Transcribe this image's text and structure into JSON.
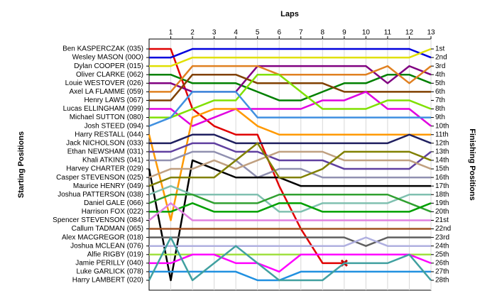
{
  "chart_data": {
    "type": "line",
    "x_label": "Laps",
    "y_label": "Starting Positions",
    "y2_label": "Finishing Positions",
    "x": [
      0,
      1,
      2,
      3,
      4,
      5,
      6,
      7,
      8,
      9,
      10,
      11,
      12,
      13
    ],
    "xlim": [
      0,
      13
    ],
    "xticks": [
      1,
      2,
      3,
      4,
      5,
      6,
      7,
      8,
      9,
      10,
      11,
      12,
      13
    ],
    "ylim": [
      1,
      28
    ],
    "y_inverted": true,
    "grid": true,
    "yticks": [
      {
        "value": 1,
        "label": "Ben KASPERCZAK (035)"
      },
      {
        "value": 2,
        "label": "Wesley MASON (00O)"
      },
      {
        "value": 3,
        "label": "Dylan COOPER (015)"
      },
      {
        "value": 4,
        "label": "Oliver CLARKE (062)"
      },
      {
        "value": 5,
        "label": "Louie WESTOVER (026)"
      },
      {
        "value": 6,
        "label": "Axel LA FLAMME (059)"
      },
      {
        "value": 7,
        "label": "Henry LAWS (067)"
      },
      {
        "value": 8,
        "label": "Lucas ELLINGHAM (099)"
      },
      {
        "value": 9,
        "label": "Michael SUTTON (080)"
      },
      {
        "value": 10,
        "label": "Josh STEED (094)"
      },
      {
        "value": 11,
        "label": "Harry RESTALL (044)"
      },
      {
        "value": 12,
        "label": "Jack NICHOLSON (033)"
      },
      {
        "value": 13,
        "label": "Ethan NEWSHAM (031)"
      },
      {
        "value": 14,
        "label": "Khali ATKINS (041)"
      },
      {
        "value": 15,
        "label": "Harvey CHARTER (029)"
      },
      {
        "value": 16,
        "label": "Casper STEVENSON (025)"
      },
      {
        "value": 17,
        "label": "Maurice HENRY (049)"
      },
      {
        "value": 18,
        "label": "Joshua PATTERSON (038)"
      },
      {
        "value": 19,
        "label": "Daniel GALE (066)"
      },
      {
        "value": 20,
        "label": "Harrison FOX (022)"
      },
      {
        "value": 21,
        "label": "Spencer STEVENSON (084)"
      },
      {
        "value": 22,
        "label": "Callum TADMAN (065)"
      },
      {
        "value": 23,
        "label": "Alex MACGREGOR (018)"
      },
      {
        "value": 24,
        "label": "Joshua MCLEAN (076)"
      },
      {
        "value": 25,
        "label": "Alfie RIGBY (019)"
      },
      {
        "value": 26,
        "label": "Jamie PERILLY (040)"
      },
      {
        "value": 27,
        "label": "Luke GARLICK (078)"
      },
      {
        "value": 28,
        "label": "Harry LAMBERT (020)"
      }
    ],
    "y2ticks": [
      {
        "value": 1,
        "label": "1st"
      },
      {
        "value": 2,
        "label": "2nd"
      },
      {
        "value": 3,
        "label": "3rd"
      },
      {
        "value": 4,
        "label": "4th"
      },
      {
        "value": 5,
        "label": "5th"
      },
      {
        "value": 6,
        "label": "6th"
      },
      {
        "value": 7,
        "label": "7th"
      },
      {
        "value": 8,
        "label": "8th"
      },
      {
        "value": 9,
        "label": "9th"
      },
      {
        "value": 10,
        "label": "10th"
      },
      {
        "value": 11,
        "label": "11th"
      },
      {
        "value": 12,
        "label": "12th"
      },
      {
        "value": 13,
        "label": "13th"
      },
      {
        "value": 14,
        "label": "14th"
      },
      {
        "value": 15,
        "label": "15th"
      },
      {
        "value": 16,
        "label": "16th"
      },
      {
        "value": 17,
        "label": "17th"
      },
      {
        "value": 18,
        "label": "18th"
      },
      {
        "value": 19,
        "label": "19th"
      },
      {
        "value": 20,
        "label": "20th"
      },
      {
        "value": 21,
        "label": "21st"
      },
      {
        "value": 22,
        "label": "22nd"
      },
      {
        "value": 23,
        "label": "23rd"
      },
      {
        "value": 24,
        "label": "24th"
      },
      {
        "value": 25,
        "label": "25th"
      },
      {
        "value": 26,
        "label": "26th"
      },
      {
        "value": 27,
        "label": "27th"
      },
      {
        "value": 28,
        "label": "28th"
      }
    ],
    "series": [
      {
        "color": "#e00000",
        "retired": true,
        "values": [
          1,
          1,
          8,
          10,
          11,
          11,
          17,
          22,
          26,
          26,
          null,
          null,
          null,
          null
        ]
      },
      {
        "color": "#0000dd",
        "values": [
          2,
          2,
          1,
          1,
          1,
          1,
          1,
          1,
          1,
          1,
          1,
          1,
          1,
          2
        ]
      },
      {
        "color": "#e0e000",
        "values": [
          3,
          3,
          2,
          2,
          2,
          2,
          2,
          2,
          2,
          2,
          2,
          2,
          2,
          1
        ]
      },
      {
        "color": "#008000",
        "values": [
          4,
          4,
          5,
          5,
          5,
          6,
          7,
          7,
          6,
          5,
          5,
          4,
          4,
          5
        ]
      },
      {
        "color": "#800080",
        "values": [
          5,
          5,
          6,
          6,
          6,
          3,
          3,
          3,
          3,
          3,
          3,
          5,
          3,
          4
        ]
      },
      {
        "color": "#e08020",
        "values": [
          6,
          6,
          3,
          3,
          3,
          3,
          4,
          4,
          4,
          4,
          4,
          3,
          5,
          3
        ]
      },
      {
        "color": "#804000",
        "values": [
          7,
          7,
          4,
          4,
          4,
          5,
          5,
          5,
          5,
          6,
          6,
          6,
          6,
          6
        ]
      },
      {
        "color": "#e000e0",
        "values": [
          8,
          8,
          10,
          9,
          8,
          8,
          8,
          8,
          7,
          7,
          6,
          8,
          8,
          10
        ]
      },
      {
        "color": "#80e000",
        "values": [
          9,
          9,
          8,
          7,
          7,
          4,
          4,
          6,
          8,
          8,
          8,
          7,
          7,
          8
        ]
      },
      {
        "color": "#4090e0",
        "values": [
          10,
          9,
          6,
          6,
          6,
          9,
          9,
          9,
          9,
          9,
          9,
          9,
          9,
          9
        ]
      },
      {
        "color": "#ff9900",
        "values": [
          11,
          21,
          9,
          8,
          8,
          10,
          11,
          11,
          11,
          11,
          11,
          11,
          11,
          11
        ]
      },
      {
        "color": "#202060",
        "values": [
          12,
          12,
          11,
          11,
          12,
          12,
          12,
          12,
          12,
          12,
          12,
          12,
          11,
          12
        ]
      },
      {
        "color": "#6040a0",
        "values": [
          13,
          13,
          12,
          12,
          13,
          13,
          14,
          14,
          14,
          15,
          15,
          15,
          15,
          13
        ]
      },
      {
        "color": "#9090b0",
        "values": [
          14,
          14,
          13,
          13,
          14,
          16,
          15,
          15,
          16,
          16,
          16,
          16,
          16,
          16
        ]
      },
      {
        "color": "#000000",
        "values": [
          15,
          28,
          14,
          15,
          16,
          16,
          16,
          17,
          17,
          17,
          17,
          17,
          17,
          17
        ]
      },
      {
        "color": "#c0a080",
        "values": [
          16,
          15,
          15,
          14,
          15,
          14,
          13,
          13,
          13,
          14,
          14,
          14,
          14,
          15
        ]
      },
      {
        "color": "#808000",
        "values": [
          17,
          16,
          16,
          16,
          14,
          12,
          16,
          16,
          15,
          13,
          13,
          13,
          13,
          14
        ]
      },
      {
        "color": "#80c0b0",
        "values": [
          18,
          17,
          18,
          18,
          18,
          18,
          20,
          20,
          19,
          19,
          19,
          19,
          18,
          18
        ]
      },
      {
        "color": "#30a030",
        "values": [
          19,
          18,
          18,
          19,
          19,
          19,
          18,
          18,
          18,
          18,
          18,
          18,
          19,
          20
        ]
      },
      {
        "color": "#00a000",
        "values": [
          20,
          20,
          19,
          20,
          20,
          20,
          19,
          19,
          20,
          20,
          20,
          20,
          20,
          19
        ]
      },
      {
        "color": "#e080e0",
        "values": [
          21,
          19,
          21,
          21,
          21,
          21,
          21,
          21,
          21,
          21,
          21,
          21,
          21,
          21
        ]
      },
      {
        "color": "#a05020",
        "values": [
          22,
          22,
          22,
          22,
          22,
          22,
          22,
          22,
          22,
          22,
          22,
          22,
          22,
          22
        ]
      },
      {
        "color": "#606060",
        "values": [
          23,
          23,
          23,
          23,
          23,
          23,
          23,
          23,
          23,
          23,
          24,
          23,
          23,
          23
        ]
      },
      {
        "color": "#b0b0e0",
        "values": [
          24,
          24,
          24,
          24,
          24,
          24,
          24,
          24,
          24,
          24,
          23,
          24,
          24,
          24
        ]
      },
      {
        "color": "#a0e040",
        "values": [
          25,
          25,
          25,
          25,
          25,
          25,
          25,
          25,
          25,
          25,
          25,
          25,
          25,
          25
        ]
      },
      {
        "color": "#ff00ff",
        "values": [
          26,
          26,
          25,
          25,
          26,
          26,
          27,
          25,
          25,
          25,
          25,
          25,
          25,
          26
        ]
      },
      {
        "color": "#2090e0",
        "values": [
          27,
          27,
          27,
          27,
          27,
          28,
          28,
          27,
          27,
          27,
          27,
          27,
          27,
          27
        ]
      },
      {
        "color": "#40a0a0",
        "values": [
          28,
          23,
          28,
          26,
          24,
          26,
          28,
          28,
          28,
          26,
          26,
          26,
          25,
          28
        ]
      }
    ]
  }
}
